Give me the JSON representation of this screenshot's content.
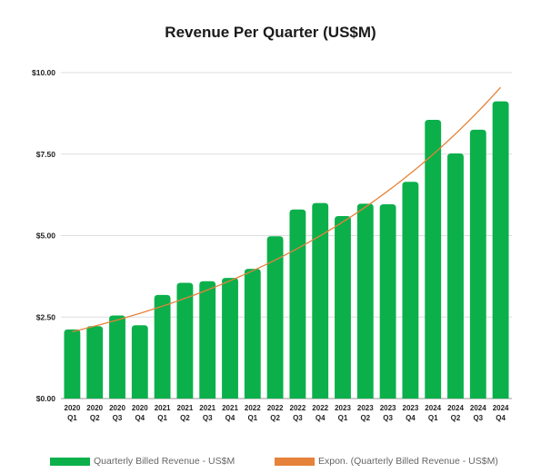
{
  "chart_data": {
    "type": "bar",
    "title": "Revenue Per Quarter (US$M)",
    "categories": [
      [
        "2020",
        "Q1"
      ],
      [
        "2020",
        "Q2"
      ],
      [
        "2020",
        "Q3"
      ],
      [
        "2020",
        "Q4"
      ],
      [
        "2021",
        "Q1"
      ],
      [
        "2021",
        "Q2"
      ],
      [
        "2021",
        "Q3"
      ],
      [
        "2021",
        "Q4"
      ],
      [
        "2022",
        "Q1"
      ],
      [
        "2022",
        "Q2"
      ],
      [
        "2022",
        "Q3"
      ],
      [
        "2022",
        "Q4"
      ],
      [
        "2023",
        "Q1"
      ],
      [
        "2023",
        "Q2"
      ],
      [
        "2023",
        "Q3"
      ],
      [
        "2023",
        "Q4"
      ],
      [
        "2024",
        "Q1"
      ],
      [
        "2024",
        "Q2"
      ],
      [
        "2024",
        "Q3"
      ],
      [
        "2024",
        "Q4"
      ]
    ],
    "series": [
      {
        "name": "Quarterly Billed Revenue - US$M",
        "color": "#0bb04b",
        "values": [
          2.12,
          2.22,
          2.55,
          2.25,
          3.18,
          3.55,
          3.6,
          3.7,
          3.98,
          4.98,
          5.8,
          6.0,
          5.6,
          5.98,
          5.96,
          6.65,
          8.55,
          7.52,
          8.25,
          9.12
        ]
      }
    ],
    "trendline": {
      "name": "Expon. (Quarterly Billed Revenue - US$M)",
      "type": "exponential",
      "color": "#e6823a",
      "start_value": 2.05,
      "end_value": 9.55
    },
    "y_ticks": [
      {
        "value": 0,
        "label": "$0.00"
      },
      {
        "value": 2.5,
        "label": "$2.50"
      },
      {
        "value": 5,
        "label": "$5.00"
      },
      {
        "value": 7.5,
        "label": "$7.50"
      },
      {
        "value": 10,
        "label": "$10.00"
      }
    ],
    "ylim": [
      0,
      10
    ],
    "grid": true,
    "legend_position": "bottom"
  }
}
